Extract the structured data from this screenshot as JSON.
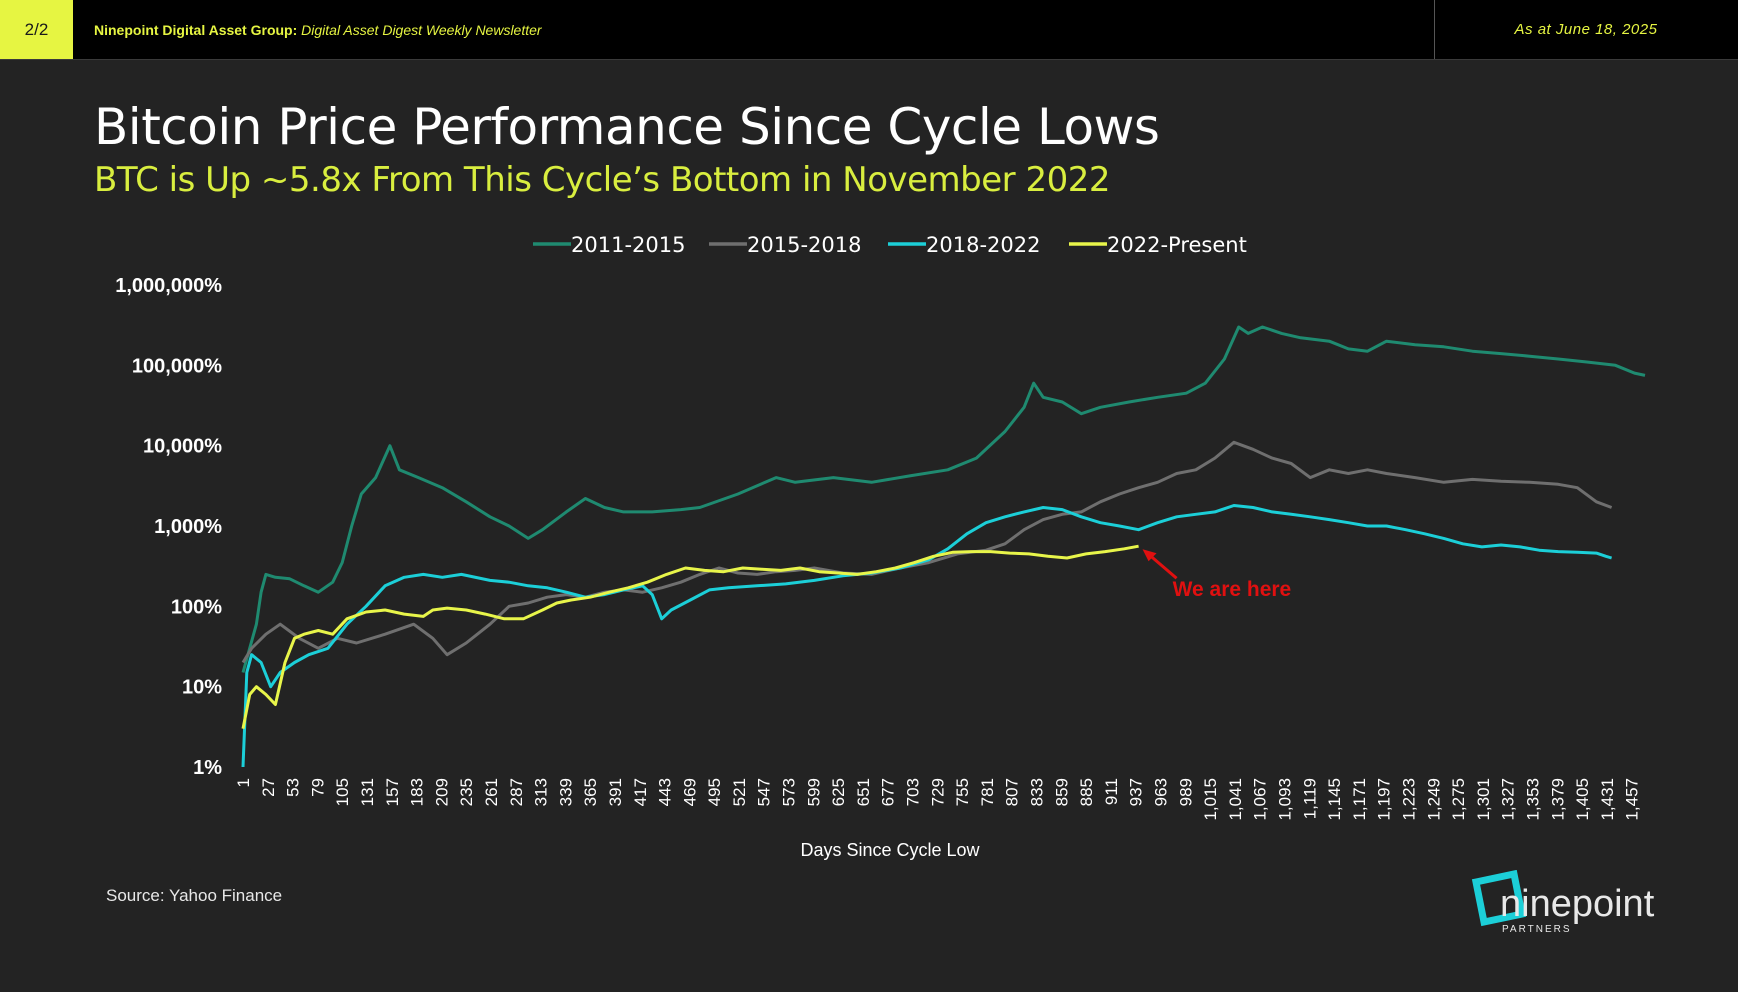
{
  "header": {
    "page_badge": "2/2",
    "org": "Ninepoint Digital Asset Group:",
    "publication": "Digital Asset Digest Weekly Newsletter",
    "date": "As at June 18, 2025"
  },
  "title": "Bitcoin Price Performance Since Cycle Lows",
  "subtitle": "BTC is Up ~5.8x From This Cycle’s Bottom in November 2022",
  "source": "Source: Yahoo Finance",
  "logo": {
    "word": "ninepoint",
    "sub": "PARTNERS"
  },
  "colors": {
    "background": "#232323",
    "accent": "#e6f542",
    "annotation": "#e01010"
  },
  "chart_data": {
    "type": "line",
    "xlabel": "Days Since Cycle Low",
    "ylabel": "",
    "yscale": "log",
    "ylim": [
      1,
      1000000
    ],
    "xlim": [
      1,
      1471
    ],
    "x_tick_labels": [
      "1",
      "27",
      "53",
      "79",
      "105",
      "131",
      "157",
      "183",
      "209",
      "235",
      "261",
      "287",
      "313",
      "339",
      "365",
      "391",
      "417",
      "443",
      "469",
      "495",
      "521",
      "547",
      "573",
      "599",
      "625",
      "651",
      "677",
      "703",
      "729",
      "755",
      "781",
      "807",
      "833",
      "859",
      "885",
      "911",
      "937",
      "963",
      "989",
      "1,015",
      "1,041",
      "1,067",
      "1,093",
      "1,119",
      "1,145",
      "1,171",
      "1,197",
      "1,223",
      "1,249",
      "1,275",
      "1,301",
      "1,327",
      "1,353",
      "1,379",
      "1,405",
      "1,431",
      "1,457"
    ],
    "y_ticks": [
      1,
      10,
      100,
      1000,
      10000,
      100000,
      1000000
    ],
    "y_tick_labels": [
      "1%",
      "10%",
      "100%",
      "1,000%",
      "10,000%",
      "100,000%",
      "1,000,000%"
    ],
    "legend_position": "top",
    "annotation": {
      "text": "We are here",
      "x": 940,
      "y": 560
    },
    "series": [
      {
        "name": "2011-2015",
        "color": "#1f8a70",
        "points": [
          [
            1,
            15
          ],
          [
            8,
            30
          ],
          [
            15,
            60
          ],
          [
            20,
            150
          ],
          [
            25,
            250
          ],
          [
            35,
            230
          ],
          [
            50,
            220
          ],
          [
            65,
            180
          ],
          [
            80,
            150
          ],
          [
            95,
            200
          ],
          [
            105,
            350
          ],
          [
            115,
            1000
          ],
          [
            125,
            2500
          ],
          [
            140,
            4000
          ],
          [
            155,
            10000
          ],
          [
            165,
            5000
          ],
          [
            185,
            4000
          ],
          [
            210,
            3000
          ],
          [
            235,
            2000
          ],
          [
            260,
            1300
          ],
          [
            280,
            1000
          ],
          [
            300,
            700
          ],
          [
            315,
            900
          ],
          [
            340,
            1500
          ],
          [
            360,
            2200
          ],
          [
            380,
            1700
          ],
          [
            400,
            1500
          ],
          [
            430,
            1500
          ],
          [
            460,
            1600
          ],
          [
            480,
            1700
          ],
          [
            520,
            2500
          ],
          [
            560,
            4000
          ],
          [
            580,
            3500
          ],
          [
            620,
            4000
          ],
          [
            660,
            3500
          ],
          [
            700,
            4200
          ],
          [
            740,
            5000
          ],
          [
            770,
            7000
          ],
          [
            800,
            15000
          ],
          [
            820,
            30000
          ],
          [
            830,
            60000
          ],
          [
            840,
            40000
          ],
          [
            860,
            35000
          ],
          [
            880,
            25000
          ],
          [
            900,
            30000
          ],
          [
            930,
            35000
          ],
          [
            960,
            40000
          ],
          [
            990,
            45000
          ],
          [
            1010,
            60000
          ],
          [
            1030,
            120000
          ],
          [
            1045,
            300000
          ],
          [
            1055,
            250000
          ],
          [
            1070,
            300000
          ],
          [
            1090,
            250000
          ],
          [
            1110,
            220000
          ],
          [
            1140,
            200000
          ],
          [
            1160,
            160000
          ],
          [
            1180,
            150000
          ],
          [
            1200,
            200000
          ],
          [
            1230,
            180000
          ],
          [
            1260,
            170000
          ],
          [
            1290,
            150000
          ],
          [
            1320,
            140000
          ],
          [
            1350,
            130000
          ],
          [
            1380,
            120000
          ],
          [
            1410,
            110000
          ],
          [
            1440,
            100000
          ],
          [
            1460,
            80000
          ],
          [
            1471,
            75000
          ]
        ]
      },
      {
        "name": "2015-2018",
        "color": "#6f6f6f",
        "points": [
          [
            1,
            20
          ],
          [
            10,
            30
          ],
          [
            25,
            45
          ],
          [
            40,
            60
          ],
          [
            60,
            40
          ],
          [
            80,
            30
          ],
          [
            100,
            40
          ],
          [
            120,
            35
          ],
          [
            150,
            45
          ],
          [
            180,
            60
          ],
          [
            200,
            40
          ],
          [
            215,
            25
          ],
          [
            235,
            35
          ],
          [
            260,
            60
          ],
          [
            280,
            100
          ],
          [
            300,
            110
          ],
          [
            320,
            130
          ],
          [
            340,
            140
          ],
          [
            360,
            130
          ],
          [
            380,
            150
          ],
          [
            400,
            160
          ],
          [
            420,
            150
          ],
          [
            440,
            170
          ],
          [
            460,
            200
          ],
          [
            480,
            250
          ],
          [
            500,
            300
          ],
          [
            520,
            260
          ],
          [
            540,
            250
          ],
          [
            560,
            270
          ],
          [
            580,
            280
          ],
          [
            600,
            300
          ],
          [
            630,
            260
          ],
          [
            660,
            250
          ],
          [
            690,
            300
          ],
          [
            720,
            350
          ],
          [
            750,
            450
          ],
          [
            780,
            500
          ],
          [
            800,
            600
          ],
          [
            820,
            900
          ],
          [
            840,
            1200
          ],
          [
            860,
            1400
          ],
          [
            880,
            1500
          ],
          [
            900,
            2000
          ],
          [
            920,
            2500
          ],
          [
            940,
            3000
          ],
          [
            960,
            3500
          ],
          [
            980,
            4500
          ],
          [
            1000,
            5000
          ],
          [
            1020,
            7000
          ],
          [
            1040,
            11000
          ],
          [
            1060,
            9000
          ],
          [
            1080,
            7000
          ],
          [
            1100,
            6000
          ],
          [
            1120,
            4000
          ],
          [
            1140,
            5000
          ],
          [
            1160,
            4500
          ],
          [
            1180,
            5000
          ],
          [
            1200,
            4500
          ],
          [
            1230,
            4000
          ],
          [
            1260,
            3500
          ],
          [
            1290,
            3800
          ],
          [
            1320,
            3600
          ],
          [
            1350,
            3500
          ],
          [
            1380,
            3300
          ],
          [
            1400,
            3000
          ],
          [
            1420,
            2000
          ],
          [
            1436,
            1700
          ]
        ]
      },
      {
        "name": "2018-2022",
        "color": "#1ccfd8",
        "points": [
          [
            1,
            1
          ],
          [
            5,
            15
          ],
          [
            10,
            25
          ],
          [
            20,
            20
          ],
          [
            30,
            10
          ],
          [
            40,
            15
          ],
          [
            55,
            20
          ],
          [
            70,
            25
          ],
          [
            90,
            30
          ],
          [
            110,
            60
          ],
          [
            130,
            100
          ],
          [
            150,
            180
          ],
          [
            170,
            230
          ],
          [
            190,
            250
          ],
          [
            210,
            230
          ],
          [
            230,
            250
          ],
          [
            260,
            210
          ],
          [
            280,
            200
          ],
          [
            300,
            180
          ],
          [
            320,
            170
          ],
          [
            340,
            150
          ],
          [
            360,
            130
          ],
          [
            380,
            140
          ],
          [
            400,
            160
          ],
          [
            420,
            180
          ],
          [
            430,
            140
          ],
          [
            440,
            70
          ],
          [
            450,
            90
          ],
          [
            470,
            120
          ],
          [
            490,
            160
          ],
          [
            510,
            170
          ],
          [
            540,
            180
          ],
          [
            570,
            190
          ],
          [
            600,
            210
          ],
          [
            630,
            240
          ],
          [
            660,
            260
          ],
          [
            690,
            300
          ],
          [
            720,
            380
          ],
          [
            740,
            520
          ],
          [
            760,
            800
          ],
          [
            780,
            1100
          ],
          [
            800,
            1300
          ],
          [
            820,
            1500
          ],
          [
            840,
            1700
          ],
          [
            860,
            1600
          ],
          [
            880,
            1300
          ],
          [
            900,
            1100
          ],
          [
            920,
            1000
          ],
          [
            940,
            900
          ],
          [
            960,
            1100
          ],
          [
            980,
            1300
          ],
          [
            1000,
            1400
          ],
          [
            1020,
            1500
          ],
          [
            1040,
            1800
          ],
          [
            1060,
            1700
          ],
          [
            1080,
            1500
          ],
          [
            1100,
            1400
          ],
          [
            1120,
            1300
          ],
          [
            1140,
            1200
          ],
          [
            1160,
            1100
          ],
          [
            1180,
            1000
          ],
          [
            1200,
            1000
          ],
          [
            1220,
            900
          ],
          [
            1240,
            800
          ],
          [
            1260,
            700
          ],
          [
            1280,
            600
          ],
          [
            1300,
            550
          ],
          [
            1320,
            580
          ],
          [
            1340,
            550
          ],
          [
            1360,
            500
          ],
          [
            1380,
            480
          ],
          [
            1400,
            470
          ],
          [
            1420,
            460
          ],
          [
            1430,
            420
          ],
          [
            1436,
            400
          ]
        ]
      },
      {
        "name": "2022-Present",
        "color": "#e8f54a",
        "points": [
          [
            1,
            3
          ],
          [
            8,
            8
          ],
          [
            15,
            10
          ],
          [
            25,
            8
          ],
          [
            35,
            6
          ],
          [
            45,
            20
          ],
          [
            55,
            40
          ],
          [
            65,
            45
          ],
          [
            80,
            50
          ],
          [
            95,
            45
          ],
          [
            110,
            70
          ],
          [
            130,
            85
          ],
          [
            150,
            90
          ],
          [
            170,
            80
          ],
          [
            190,
            75
          ],
          [
            200,
            90
          ],
          [
            215,
            95
          ],
          [
            235,
            90
          ],
          [
            255,
            80
          ],
          [
            275,
            70
          ],
          [
            295,
            70
          ],
          [
            315,
            90
          ],
          [
            330,
            110
          ],
          [
            345,
            120
          ],
          [
            365,
            130
          ],
          [
            385,
            150
          ],
          [
            405,
            170
          ],
          [
            425,
            200
          ],
          [
            445,
            250
          ],
          [
            465,
            300
          ],
          [
            485,
            280
          ],
          [
            505,
            270
          ],
          [
            525,
            300
          ],
          [
            545,
            290
          ],
          [
            565,
            280
          ],
          [
            585,
            300
          ],
          [
            605,
            270
          ],
          [
            625,
            260
          ],
          [
            645,
            250
          ],
          [
            665,
            270
          ],
          [
            685,
            300
          ],
          [
            705,
            350
          ],
          [
            725,
            420
          ],
          [
            745,
            470
          ],
          [
            765,
            480
          ],
          [
            785,
            480
          ],
          [
            805,
            460
          ],
          [
            825,
            450
          ],
          [
            845,
            420
          ],
          [
            865,
            400
          ],
          [
            885,
            450
          ],
          [
            905,
            480
          ],
          [
            925,
            520
          ],
          [
            940,
            560
          ]
        ]
      }
    ]
  }
}
